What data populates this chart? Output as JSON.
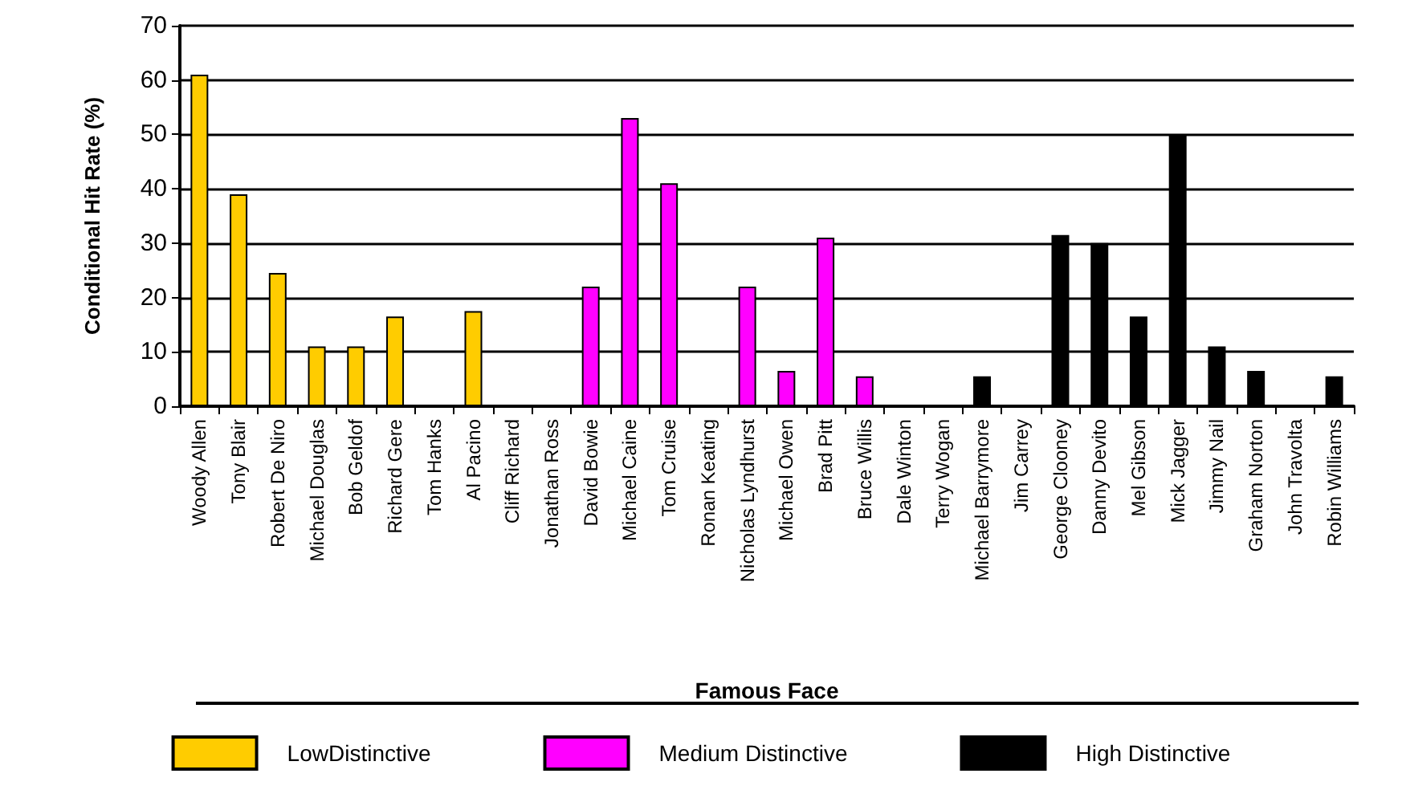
{
  "chart_data": {
    "type": "bar",
    "xlabel": "Famous Face",
    "ylabel": "Conditional Hit Rate (%)",
    "categories": [
      "Woody Allen",
      "Tony Blair",
      "Robert De Niro",
      "Michael Douglas",
      "Bob Geldof",
      "Richard Gere",
      "Tom Hanks",
      "Al Pacino",
      "Cliff Richard",
      "Jonathan Ross",
      "David Bowie",
      "Michael Caine",
      "Tom Cruise",
      "Ronan Keating",
      "Nicholas Lyndhurst",
      "Michael Owen",
      "Brad Pitt",
      "Bruce Willis",
      "Dale Winton",
      "Terry Wogan",
      "Michael Barrymore",
      "Jim Carrey",
      "George Clooney",
      "Danny Devito",
      "Mel Gibson",
      "Mick Jagger",
      "Jimmy Nail",
      "Graham Norton",
      "John Travolta",
      "Robin Williams"
    ],
    "series": [
      {
        "name": "LowDistinctive",
        "color": "#ffcc00",
        "values": [
          61,
          39,
          24.5,
          11,
          11,
          16.5,
          0,
          17.5,
          0,
          0,
          null,
          null,
          null,
          null,
          null,
          null,
          null,
          null,
          null,
          null,
          null,
          null,
          null,
          null,
          null,
          null,
          null,
          null,
          null,
          null
        ]
      },
      {
        "name": "Medium Distinctive",
        "color": "#ff00ff",
        "values": [
          null,
          null,
          null,
          null,
          null,
          null,
          null,
          null,
          null,
          null,
          22,
          53,
          41,
          0,
          22,
          6.5,
          31,
          5.5,
          0,
          0,
          null,
          null,
          null,
          null,
          null,
          null,
          null,
          null,
          null,
          null
        ]
      },
      {
        "name": "High Distinctive",
        "color": "#000000",
        "values": [
          null,
          null,
          null,
          null,
          null,
          null,
          null,
          null,
          null,
          null,
          null,
          null,
          null,
          null,
          null,
          null,
          null,
          null,
          null,
          null,
          5.5,
          0,
          31.5,
          30,
          16.5,
          50,
          11,
          6.5,
          0,
          5.5
        ]
      }
    ],
    "ylim": [
      0,
      70
    ],
    "yticks": [
      0,
      10,
      20,
      30,
      40,
      50,
      60,
      70
    ],
    "grid": "y",
    "legend": "bottom"
  }
}
